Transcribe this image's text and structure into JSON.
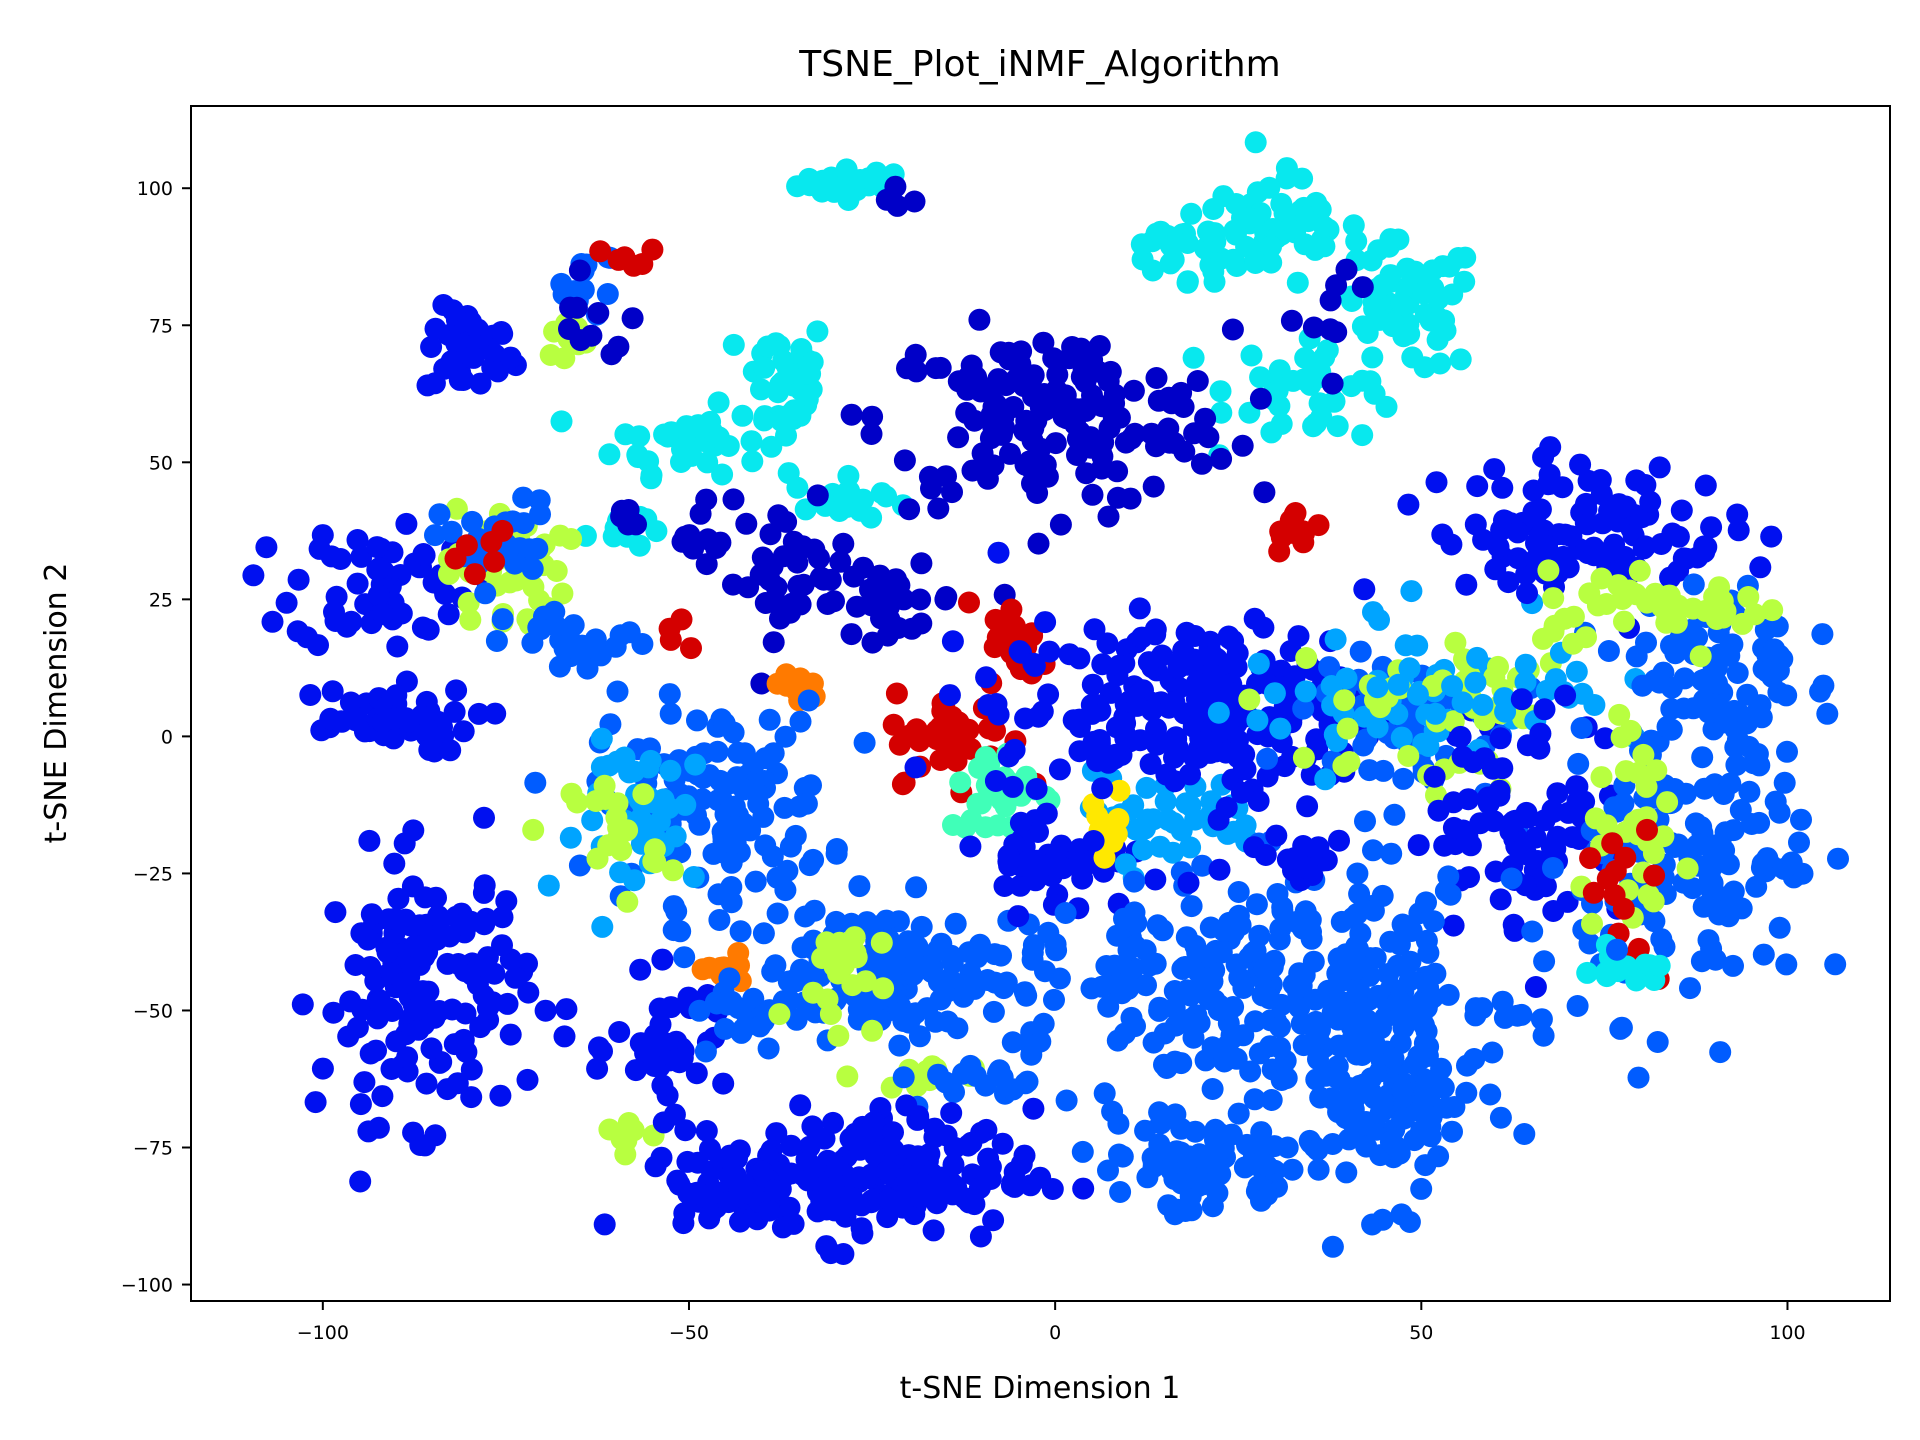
{
  "chart_data": {
    "type": "scatter",
    "title": "TSNE_Plot_iNMF_Algorithm",
    "xlabel": "t-SNE Dimension 1",
    "ylabel": "t-SNE Dimension 2",
    "xlim": [
      -118,
      114
    ],
    "ylim": [
      -103,
      115
    ],
    "xticks": [
      -100,
      -50,
      0,
      50,
      100
    ],
    "yticks": [
      -100,
      -75,
      -50,
      -25,
      0,
      25,
      50,
      75,
      100
    ],
    "xtick_labels": [
      "−100",
      "−50",
      "0",
      "50",
      "100"
    ],
    "ytick_labels": [
      "−100",
      "−75",
      "−50",
      "−25",
      "0",
      "25",
      "50",
      "75",
      "100"
    ],
    "grid": false,
    "legend": "none",
    "colormap": "jet",
    "palette": {
      "navy": "#0000c8",
      "blue": "#0010f0",
      "azure": "#005cff",
      "sky": "#00a4ff",
      "cyan": "#08e8ee",
      "aqua": "#40ffb8",
      "lime": "#b8ff40",
      "yellow": "#ffe800",
      "orange": "#ff7a00",
      "red": "#d40000",
      "darkred": "#800000"
    },
    "clusters": [
      {
        "x": -27,
        "y": 101,
        "sx": 4,
        "sy": 1.2,
        "n": 35,
        "color": "cyan"
      },
      {
        "x": -20,
        "y": 98,
        "sx": 1.5,
        "sy": 1.5,
        "n": 4,
        "color": "navy"
      },
      {
        "x": -64,
        "y": 83,
        "sx": 2,
        "sy": 3,
        "n": 12,
        "color": "azure"
      },
      {
        "x": -58,
        "y": 87,
        "sx": 2,
        "sy": 1.2,
        "n": 6,
        "color": "red"
      },
      {
        "x": -67,
        "y": 72,
        "sx": 2,
        "sy": 2,
        "n": 10,
        "color": "lime"
      },
      {
        "x": -63,
        "y": 75,
        "sx": 3,
        "sy": 4,
        "n": 10,
        "color": "navy"
      },
      {
        "x": -80,
        "y": 70,
        "sx": 3,
        "sy": 4,
        "n": 40,
        "color": "blue"
      },
      {
        "x": -37,
        "y": 65,
        "sx": 3,
        "sy": 6,
        "n": 40,
        "color": "cyan"
      },
      {
        "x": -50,
        "y": 54,
        "sx": 5,
        "sy": 3,
        "n": 40,
        "color": "cyan"
      },
      {
        "x": -28,
        "y": 43,
        "sx": 4,
        "sy": 2,
        "n": 20,
        "color": "cyan"
      },
      {
        "x": -60,
        "y": 38,
        "sx": 2,
        "sy": 2,
        "n": 10,
        "color": "cyan"
      },
      {
        "x": -58,
        "y": 40,
        "sx": 1.5,
        "sy": 1.5,
        "n": 6,
        "color": "navy"
      },
      {
        "x": -48,
        "y": 38,
        "sx": 2,
        "sy": 3,
        "n": 10,
        "color": "navy"
      },
      {
        "x": -36,
        "y": 30,
        "sx": 4,
        "sy": 6,
        "n": 35,
        "color": "navy"
      },
      {
        "x": -23,
        "y": 25,
        "sx": 5,
        "sy": 3,
        "n": 30,
        "color": "navy"
      },
      {
        "x": 30,
        "y": 92,
        "sx": 6,
        "sy": 5,
        "n": 60,
        "color": "cyan"
      },
      {
        "x": 48,
        "y": 78,
        "sx": 5,
        "sy": 6,
        "n": 55,
        "color": "cyan"
      },
      {
        "x": 17,
        "y": 88,
        "sx": 5,
        "sy": 3,
        "n": 20,
        "color": "cyan"
      },
      {
        "x": 36,
        "y": 64,
        "sx": 6,
        "sy": 5,
        "n": 40,
        "color": "cyan"
      },
      {
        "x": 38,
        "y": 78,
        "sx": 3,
        "sy": 3,
        "n": 8,
        "color": "navy"
      },
      {
        "x": 0,
        "y": 58,
        "sx": 12,
        "sy": 8,
        "n": 170,
        "color": "navy"
      },
      {
        "x": 33,
        "y": 37,
        "sx": 2,
        "sy": 2,
        "n": 14,
        "color": "red"
      },
      {
        "x": -92,
        "y": 28,
        "sx": 6,
        "sy": 6,
        "n": 60,
        "color": "blue"
      },
      {
        "x": -93,
        "y": 3,
        "sx": 7,
        "sy": 3,
        "n": 50,
        "color": "blue"
      },
      {
        "x": -75,
        "y": 30,
        "sx": 4,
        "sy": 6,
        "n": 40,
        "color": "lime"
      },
      {
        "x": -76,
        "y": 35,
        "sx": 4,
        "sy": 4,
        "n": 30,
        "color": "azure"
      },
      {
        "x": -65,
        "y": 17,
        "sx": 5,
        "sy": 3,
        "n": 25,
        "color": "azure"
      },
      {
        "x": -78,
        "y": 32,
        "sx": 3,
        "sy": 3,
        "n": 6,
        "color": "red"
      },
      {
        "x": -52,
        "y": 18,
        "sx": 1,
        "sy": 2,
        "n": 4,
        "color": "red"
      },
      {
        "x": -35,
        "y": 9,
        "sx": 2,
        "sy": 1.5,
        "n": 14,
        "color": "orange"
      },
      {
        "x": -47,
        "y": -12,
        "sx": 8,
        "sy": 9,
        "n": 130,
        "color": "azure"
      },
      {
        "x": -55,
        "y": -15,
        "sx": 5,
        "sy": 7,
        "n": 40,
        "color": "sky"
      },
      {
        "x": -60,
        "y": -18,
        "sx": 3,
        "sy": 6,
        "n": 20,
        "color": "lime"
      },
      {
        "x": -86,
        "y": -46,
        "sx": 7,
        "sy": 12,
        "n": 150,
        "color": "blue"
      },
      {
        "x": -52,
        "y": -57,
        "sx": 4,
        "sy": 6,
        "n": 40,
        "color": "blue"
      },
      {
        "x": -45,
        "y": -43,
        "sx": 2,
        "sy": 1.2,
        "n": 10,
        "color": "orange"
      },
      {
        "x": -43,
        "y": -52,
        "sx": 4,
        "sy": 4,
        "n": 20,
        "color": "azure"
      },
      {
        "x": -58,
        "y": -72,
        "sx": 2,
        "sy": 2,
        "n": 8,
        "color": "lime"
      },
      {
        "x": -22,
        "y": -43,
        "sx": 10,
        "sy": 6,
        "n": 150,
        "color": "azure"
      },
      {
        "x": -30,
        "y": -43,
        "sx": 3,
        "sy": 5,
        "n": 20,
        "color": "lime"
      },
      {
        "x": -19,
        "y": -62,
        "sx": 4,
        "sy": 1.2,
        "n": 15,
        "color": "lime"
      },
      {
        "x": -10,
        "y": -62,
        "sx": 6,
        "sy": 3,
        "n": 20,
        "color": "azure"
      },
      {
        "x": -25,
        "y": -80,
        "sx": 11,
        "sy": 6,
        "n": 170,
        "color": "blue"
      },
      {
        "x": -44,
        "y": -82,
        "sx": 6,
        "sy": 4,
        "n": 50,
        "color": "blue"
      },
      {
        "x": -14,
        "y": 0,
        "sx": 4,
        "sy": 4,
        "n": 40,
        "color": "red"
      },
      {
        "x": -5,
        "y": 16,
        "sx": 2,
        "sy": 4,
        "n": 20,
        "color": "red"
      },
      {
        "x": -7,
        "y": -10,
        "sx": 4,
        "sy": 4,
        "n": 30,
        "color": "aqua"
      },
      {
        "x": 0,
        "y": -22,
        "sx": 5,
        "sy": 5,
        "n": 45,
        "color": "blue"
      },
      {
        "x": 15,
        "y": -15,
        "sx": 7,
        "sy": 4,
        "n": 40,
        "color": "sky"
      },
      {
        "x": 7,
        "y": -16,
        "sx": 3,
        "sy": 4,
        "n": 10,
        "color": "yellow"
      },
      {
        "x": 20,
        "y": 5,
        "sx": 14,
        "sy": 8,
        "n": 250,
        "color": "blue"
      },
      {
        "x": 45,
        "y": 3,
        "sx": 8,
        "sy": 8,
        "n": 60,
        "color": "azure"
      },
      {
        "x": 45,
        "y": 5,
        "sx": 10,
        "sy": 6,
        "n": 40,
        "color": "sky"
      },
      {
        "x": 45,
        "y": 2,
        "sx": 10,
        "sy": 7,
        "n": 25,
        "color": "lime"
      },
      {
        "x": 58,
        "y": 8,
        "sx": 8,
        "sy": 5,
        "n": 25,
        "color": "lime"
      },
      {
        "x": 60,
        "y": 10,
        "sx": 8,
        "sy": 6,
        "n": 30,
        "color": "sky"
      },
      {
        "x": 65,
        "y": -15,
        "sx": 7,
        "sy": 10,
        "n": 90,
        "color": "blue"
      },
      {
        "x": 72,
        "y": 38,
        "sx": 10,
        "sy": 6,
        "n": 110,
        "color": "blue"
      },
      {
        "x": 90,
        "y": 10,
        "sx": 6,
        "sy": 10,
        "n": 90,
        "color": "azure"
      },
      {
        "x": 82,
        "y": 24,
        "sx": 10,
        "sy": 3,
        "n": 40,
        "color": "lime"
      },
      {
        "x": 88,
        "y": -25,
        "sx": 8,
        "sy": 12,
        "n": 120,
        "color": "azure"
      },
      {
        "x": 80,
        "y": -20,
        "sx": 4,
        "sy": 8,
        "n": 30,
        "color": "lime"
      },
      {
        "x": 78,
        "y": -32,
        "sx": 3,
        "sy": 10,
        "n": 15,
        "color": "red"
      },
      {
        "x": 77,
        "y": -43,
        "sx": 4,
        "sy": 1.5,
        "n": 15,
        "color": "cyan"
      },
      {
        "x": 35,
        "y": -45,
        "sx": 14,
        "sy": 10,
        "n": 220,
        "color": "azure"
      },
      {
        "x": 45,
        "y": -65,
        "sx": 7,
        "sy": 10,
        "n": 120,
        "color": "azure"
      },
      {
        "x": 20,
        "y": -78,
        "sx": 7,
        "sy": 5,
        "n": 80,
        "color": "azure"
      },
      {
        "x": 15,
        "y": -45,
        "sx": 6,
        "sy": 8,
        "n": 50,
        "color": "azure"
      },
      {
        "x": 32,
        "y": -22,
        "sx": 5,
        "sy": 4,
        "n": 20,
        "color": "blue"
      }
    ]
  }
}
